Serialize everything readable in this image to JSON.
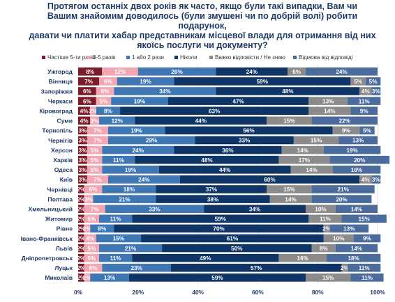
{
  "chart_data": {
    "type": "bar",
    "orientation": "horizontal",
    "stacked": true,
    "title": "Протягом останніх двох років як часто, якщо були такі випадки, Вам чи\nВашим знайомим доводилось (були змушені чи по добрій волі) робити подарунок,\nдавати чи платити хабар представникам місцевої влади для отримання від них\nякоїсь послуги чи документу?",
    "categories": [
      "Ужгород",
      "Вінниця",
      "Запоріжжя",
      "Черкаси",
      "Кіровоград",
      "Суми",
      "Тернопіль",
      "Чернігів",
      "Херсон",
      "Харків",
      "Одеса",
      "Київ",
      "Чернівці",
      "Полтава",
      "Хмельницький",
      "Житомир",
      "Рівне",
      "Івано-Франківськ",
      "Львів",
      "Дніпропетровськ",
      "Луцьк",
      "Миколаїв"
    ],
    "series": [
      {
        "name": "Частіше 5-ти разів",
        "color": "#7b1c2a",
        "values": [
          8,
          7,
          6,
          6,
          4,
          4,
          3,
          3,
          3,
          3,
          3,
          3,
          2,
          2,
          2,
          2,
          2,
          2,
          2,
          2,
          2,
          2
        ]
      },
      {
        "name": "3-5 разів",
        "color": "#f2a7b3",
        "values": [
          12,
          6,
          6,
          5,
          2,
          3,
          7,
          7,
          5,
          5,
          5,
          7,
          6,
          3,
          7,
          5,
          2,
          4,
          5,
          5,
          6,
          2
        ]
      },
      {
        "name": "1 або 2 рази",
        "color": "#3f77b5",
        "values": [
          26,
          19,
          34,
          19,
          8,
          12,
          19,
          29,
          24,
          11,
          19,
          24,
          18,
          21,
          33,
          11,
          8,
          15,
          21,
          11,
          23,
          13
        ]
      },
      {
        "name": "Ніколи",
        "color": "#0f3566",
        "values": [
          24,
          59,
          48,
          47,
          63,
          44,
          56,
          33,
          36,
          48,
          44,
          60,
          37,
          38,
          34,
          59,
          70,
          61,
          50,
          49,
          57,
          59
        ]
      },
      {
        "name": "Важко відповісти / Не знаю",
        "color": "#8b8b8b",
        "values": [
          6,
          5,
          4,
          13,
          14,
          15,
          9,
          15,
          14,
          17,
          14,
          4,
          15,
          14,
          10,
          11,
          2,
          10,
          8,
          16,
          2,
          15
        ]
      },
      {
        "name": "Відмова від відповіді",
        "color": "#4a6b9c",
        "values": [
          24,
          5,
          3,
          11,
          9,
          22,
          5,
          13,
          19,
          20,
          16,
          3,
          21,
          20,
          14,
          15,
          13,
          9,
          14,
          18,
          11,
          11
        ]
      }
    ],
    "labels": [
      [
        "8%",
        "12%",
        "26%",
        "24%",
        "6%",
        "24%"
      ],
      [
        "7%",
        "6%",
        "19%",
        "59%",
        "5%",
        "5%"
      ],
      [
        "6%",
        "6%",
        "34%",
        "48%",
        "4%",
        "3%"
      ],
      [
        "6%",
        "5%",
        "19%",
        "47%",
        "13%",
        "11%"
      ],
      [
        "4%",
        "2%",
        "8%",
        "63%",
        "14%",
        "9%"
      ],
      [
        "4%",
        "3%",
        "12%",
        "44%",
        "15%",
        "22%"
      ],
      [
        "3%",
        "7%",
        "19%",
        "56%",
        "9%",
        "5%"
      ],
      [
        "3%",
        "7%",
        "29%",
        "33%",
        "15%",
        "13%"
      ],
      [
        "3%",
        "5%",
        "24%",
        "36%",
        "14%",
        "19%"
      ],
      [
        "3%",
        "5%",
        "11%",
        "48%",
        "17%",
        "20%"
      ],
      [
        "3%",
        "5%",
        "19%",
        "44%",
        "14%",
        "16%"
      ],
      [
        "3%",
        "7%",
        "24%",
        "60%",
        "4%",
        "3%"
      ],
      [
        "2%",
        "6%",
        "18%",
        "37%",
        "15%",
        "21%"
      ],
      [
        "2%",
        "3%",
        "21%",
        "38%",
        "14%",
        "20%"
      ],
      [
        "2%",
        "7%",
        "33%",
        "34%",
        "10%",
        "14%"
      ],
      [
        "2%",
        "5%",
        "11%",
        "59%",
        "11%",
        "15%"
      ],
      [
        "2%",
        "2%",
        "8%",
        "70%",
        "2%",
        "13%"
      ],
      [
        "2%",
        "4%",
        "15%",
        "61%",
        "10%",
        "9%"
      ],
      [
        "2%",
        "5%",
        "21%",
        "50%",
        "8%",
        "14%"
      ],
      [
        "2%",
        "5%",
        "11%",
        "49%",
        "16%",
        "18%"
      ],
      [
        "2%",
        "6%",
        "23%",
        "57%",
        "2%",
        "11%"
      ],
      [
        "2%",
        "2%",
        "13%",
        "59%",
        "15%",
        "11%"
      ]
    ],
    "xlim": [
      0,
      100
    ],
    "xticks": [
      "0%",
      "20%",
      "40%",
      "60%",
      "80%",
      "100%"
    ],
    "legend_position": "top",
    "grid": true
  }
}
